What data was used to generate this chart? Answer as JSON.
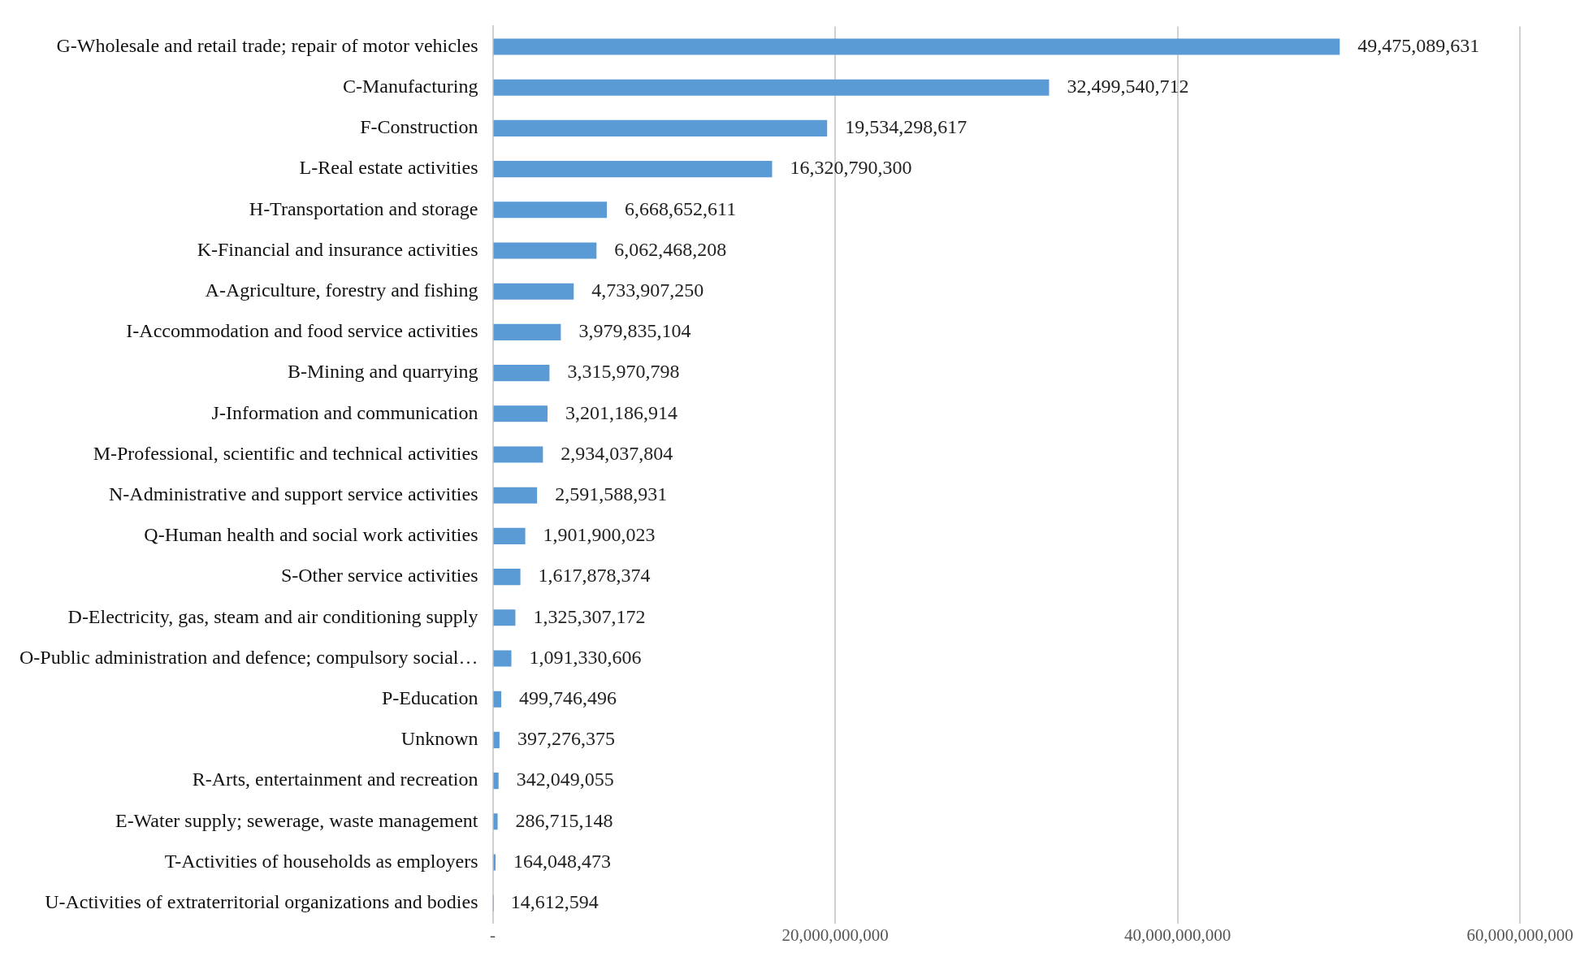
{
  "chart_data": {
    "type": "bar",
    "orientation": "horizontal",
    "categories": [
      "G-Wholesale and retail trade; repair of motor vehicles",
      "C-Manufacturing",
      "F-Construction",
      "L-Real estate activities",
      "H-Transportation and storage",
      "K-Financial and insurance activities",
      "A-Agriculture, forestry and fishing",
      "I-Accommodation and food service activities",
      "B-Mining and quarrying",
      "J-Information and communication",
      "M-Professional, scientific and technical activities",
      "N-Administrative and support service activities",
      "Q-Human health and social work activities",
      "S-Other service activities",
      "D-Electricity, gas, steam and air conditioning supply",
      "O-Public administration and defence; compulsory social…",
      "P-Education",
      "Unknown",
      "R-Arts, entertainment and recreation",
      "E-Water supply; sewerage, waste management",
      "T-Activities of households as employers",
      "U-Activities of extraterritorial organizations and bodies"
    ],
    "values": [
      49475089631,
      32499540712,
      19534298617,
      16320790300,
      6668652611,
      6062468208,
      4733907250,
      3979835104,
      3315970798,
      3201186914,
      2934037804,
      2591588931,
      1901900023,
      1617878374,
      1325307172,
      1091330606,
      499746496,
      397276375,
      342049055,
      286715148,
      164048473,
      14612594
    ],
    "color": "#5b9bd5",
    "xlim": [
      0,
      60000000000
    ],
    "xticks": [
      {
        "value": 0,
        "label": "-"
      },
      {
        "value": 20000000000,
        "label": "20,000,000,000"
      },
      {
        "value": 40000000000,
        "label": "40,000,000,000"
      },
      {
        "value": 60000000000,
        "label": "60,000,000,000"
      }
    ],
    "value_labels": [
      "49,475,089,631",
      "32,499,540,712",
      "19,534,298,617",
      "16,320,790,300",
      "6,668,652,611",
      "6,062,468,208",
      "4,733,907,250",
      "3,979,835,104",
      "3,315,970,798",
      "3,201,186,914",
      "2,934,037,804",
      "2,591,588,931",
      "1,901,900,023",
      "1,617,878,374",
      "1,325,307,172",
      "1,091,330,606",
      "499,746,496",
      "397,276,375",
      "342,049,055",
      "286,715,148",
      "164,048,473",
      "14,612,594"
    ],
    "grid": "x",
    "legend": false
  }
}
